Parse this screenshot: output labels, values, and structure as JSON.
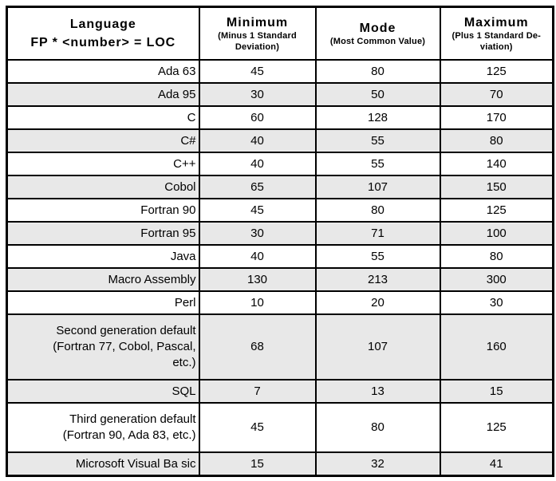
{
  "table": {
    "header": {
      "language_col_lines": [
        "Language",
        "FP * <number> = LOC"
      ],
      "value_columns": [
        {
          "title": "Minimum",
          "subtitle_lines": [
            "(Minus 1 Standard",
            "Deviation)"
          ]
        },
        {
          "title": "Mode",
          "subtitle_lines": [
            "(Most Common Value)"
          ]
        },
        {
          "title": "Maximum",
          "subtitle_lines": [
            "(Plus 1 Standard De-",
            "viation)"
          ]
        }
      ]
    },
    "rows": [
      {
        "language_lines": [
          "Ada 63"
        ],
        "minimum": "45",
        "mode": "80",
        "maximum": "125",
        "shaded": false
      },
      {
        "language_lines": [
          "Ada 95"
        ],
        "minimum": "30",
        "mode": "50",
        "maximum": "70",
        "shaded": true
      },
      {
        "language_lines": [
          "C"
        ],
        "minimum": "60",
        "mode": "128",
        "maximum": "170",
        "shaded": false
      },
      {
        "language_lines": [
          "C#"
        ],
        "minimum": "40",
        "mode": "55",
        "maximum": "80",
        "shaded": true
      },
      {
        "language_lines": [
          "C++"
        ],
        "minimum": "40",
        "mode": "55",
        "maximum": "140",
        "shaded": false
      },
      {
        "language_lines": [
          "Cobol"
        ],
        "minimum": "65",
        "mode": "107",
        "maximum": "150",
        "shaded": true
      },
      {
        "language_lines": [
          "Fortran 90"
        ],
        "minimum": "45",
        "mode": "80",
        "maximum": "125",
        "shaded": false
      },
      {
        "language_lines": [
          "Fortran 95"
        ],
        "minimum": "30",
        "mode": "71",
        "maximum": "100",
        "shaded": true
      },
      {
        "language_lines": [
          "Java"
        ],
        "minimum": "40",
        "mode": "55",
        "maximum": "80",
        "shaded": false
      },
      {
        "language_lines": [
          "Macro Assembly"
        ],
        "minimum": "130",
        "mode": "213",
        "maximum": "300",
        "shaded": true
      },
      {
        "language_lines": [
          "Perl"
        ],
        "minimum": "10",
        "mode": "20",
        "maximum": "30",
        "shaded": false
      },
      {
        "language_lines": [
          "Second generation default",
          "(Fortran 77, Cobol, Pascal,",
          "etc.)"
        ],
        "minimum": "68",
        "mode": "107",
        "maximum": "160",
        "shaded": true
      },
      {
        "language_lines": [
          "SQL"
        ],
        "minimum": "7",
        "mode": "13",
        "maximum": "15",
        "shaded": true
      },
      {
        "language_lines": [
          "Third generation default",
          "(Fortran 90, Ada 83, etc.)"
        ],
        "minimum": "45",
        "mode": "80",
        "maximum": "125",
        "shaded": false
      },
      {
        "language_lines": [
          "Microsoft Visual Ba sic"
        ],
        "minimum": "15",
        "mode": "32",
        "maximum": "41",
        "shaded": true
      }
    ]
  },
  "colors": {
    "border": "#000000",
    "row_shade": "#e8e8e8",
    "background": "#ffffff",
    "text": "#000000"
  },
  "chart_data": {
    "type": "table",
    "title": "Language FP * <number> = LOC",
    "columns": [
      "Language",
      "Minimum (Minus 1 Standard Deviation)",
      "Mode (Most Common Value)",
      "Maximum (Plus 1 Standard Deviation)"
    ],
    "rows": [
      [
        "Ada 63",
        45,
        80,
        125
      ],
      [
        "Ada 95",
        30,
        50,
        70
      ],
      [
        "C",
        60,
        128,
        170
      ],
      [
        "C#",
        40,
        55,
        80
      ],
      [
        "C++",
        40,
        55,
        140
      ],
      [
        "Cobol",
        65,
        107,
        150
      ],
      [
        "Fortran 90",
        45,
        80,
        125
      ],
      [
        "Fortran 95",
        30,
        71,
        100
      ],
      [
        "Java",
        40,
        55,
        80
      ],
      [
        "Macro Assembly",
        130,
        213,
        300
      ],
      [
        "Perl",
        10,
        20,
        30
      ],
      [
        "Second generation default (Fortran 77, Cobol, Pascal, etc.)",
        68,
        107,
        160
      ],
      [
        "SQL",
        7,
        13,
        15
      ],
      [
        "Third generation default (Fortran 90, Ada 83, etc.)",
        45,
        80,
        125
      ],
      [
        "Microsoft Visual Ba sic",
        15,
        32,
        41
      ]
    ]
  }
}
